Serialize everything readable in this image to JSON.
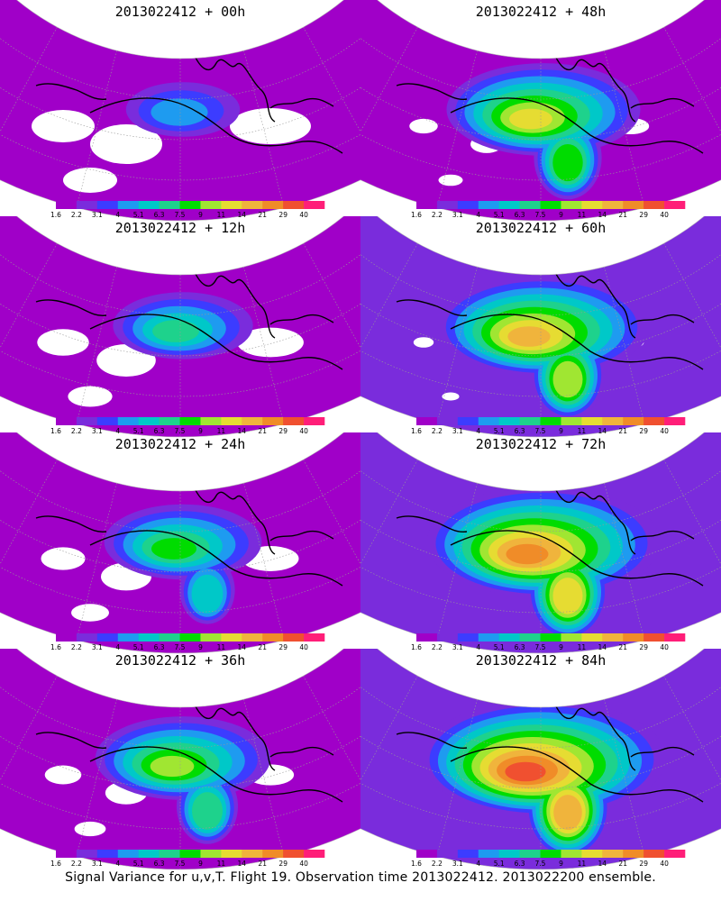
{
  "figure": {
    "caption": "Signal Variance for u,v,T. Flight 19. Observation time 2013022412. 2013022200 ensemble."
  },
  "colorbar": {
    "labels": [
      "1.6",
      "2.2",
      "3.1",
      "4",
      "5.1",
      "6.3",
      "7.5",
      "9",
      "11",
      "14",
      "21",
      "29",
      "40"
    ],
    "colors": [
      "#a000c8",
      "#7a2cdc",
      "#3c3cff",
      "#1e9bf0",
      "#00c8c8",
      "#1ed28c",
      "#00dc00",
      "#a0e632",
      "#e6dc32",
      "#f0b43c",
      "#f08c28",
      "#f05030",
      "#ff1e78"
    ]
  },
  "panels": [
    {
      "title": "2013022412 + 00h",
      "level": 0.0
    },
    {
      "title": "2013022412 + 48h",
      "level": 0.55
    },
    {
      "title": "2013022412 + 12h",
      "level": 0.18
    },
    {
      "title": "2013022412 + 60h",
      "level": 0.68
    },
    {
      "title": "2013022412 + 24h",
      "level": 0.3
    },
    {
      "title": "2013022412 + 72h",
      "level": 0.82
    },
    {
      "title": "2013022412 + 36h",
      "level": 0.42
    },
    {
      "title": "2013022412 + 84h",
      "level": 0.9
    }
  ]
}
